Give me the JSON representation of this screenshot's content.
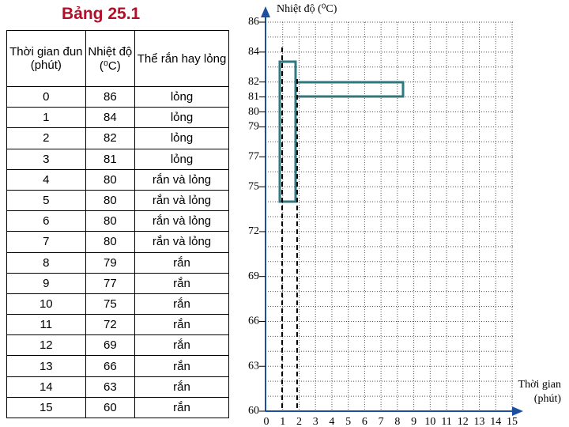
{
  "header": {
    "title": "Bảng 25.1"
  },
  "table": {
    "columns": [
      "Thời gian đun (phút)",
      "Nhiệt độ (⁰C)",
      "Thể rắn hay lỏng"
    ],
    "rows": [
      [
        "0",
        "86",
        "lỏng"
      ],
      [
        "1",
        "84",
        "lỏng"
      ],
      [
        "2",
        "82",
        "lỏng"
      ],
      [
        "3",
        "81",
        "lỏng"
      ],
      [
        "4",
        "80",
        "rắn và lỏng"
      ],
      [
        "5",
        "80",
        "rắn và lỏng"
      ],
      [
        "6",
        "80",
        "rắn và lỏng"
      ],
      [
        "7",
        "80",
        "rắn và lỏng"
      ],
      [
        "8",
        "79",
        "rắn"
      ],
      [
        "9",
        "77",
        "rắn"
      ],
      [
        "10",
        "75",
        "rắn"
      ],
      [
        "11",
        "72",
        "rắn"
      ],
      [
        "12",
        "69",
        "rắn"
      ],
      [
        "13",
        "66",
        "rắn"
      ],
      [
        "14",
        "63",
        "rắn"
      ],
      [
        "15",
        "60",
        "rắn"
      ]
    ]
  },
  "graph": {
    "y_label": "Nhiệt độ (⁰C)",
    "x_label": "Thời gian (phút)",
    "yticks": [
      86,
      84,
      82,
      81,
      80,
      79,
      77,
      75,
      72,
      69,
      66,
      63,
      60
    ],
    "xticks": [
      0,
      1,
      2,
      3,
      4,
      5,
      6,
      7,
      8,
      9,
      10,
      11,
      12,
      13,
      14,
      15
    ]
  }
}
